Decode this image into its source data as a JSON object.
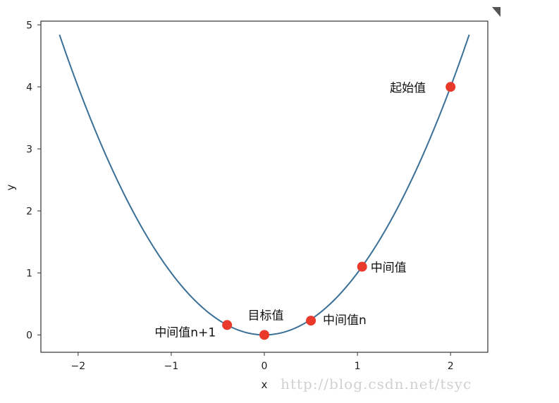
{
  "chart_data": {
    "type": "line",
    "title": "",
    "xlabel": "x",
    "ylabel": "y",
    "xlim": [
      -2.4,
      2.4
    ],
    "ylim": [
      -0.28,
      5.06
    ],
    "x_ticks": [
      -2,
      -1,
      0,
      1,
      2
    ],
    "x_tick_labels": [
      "−2",
      "−1",
      "0",
      "1",
      "2"
    ],
    "y_ticks": [
      0,
      1,
      2,
      3,
      4,
      5
    ],
    "y_tick_labels": [
      "0",
      "1",
      "2",
      "3",
      "4",
      "5"
    ],
    "grid": false,
    "curve": {
      "function": "y = x^2",
      "x_range": [
        -2.2,
        2.2
      ],
      "color": "#3a6f96"
    },
    "points": [
      {
        "x": 2.0,
        "y": 4.0,
        "label": "起始值"
      },
      {
        "x": 1.05,
        "y": 1.1,
        "label": "中间值"
      },
      {
        "x": 0.5,
        "y": 0.23,
        "label": "中间值n"
      },
      {
        "x": 0.0,
        "y": 0.0,
        "label": "目标值"
      },
      {
        "x": -0.4,
        "y": 0.16,
        "label": "中间值n+1"
      }
    ],
    "point_color": "#e8392a"
  },
  "watermark": "http://blog.csdn.net/tsyc"
}
